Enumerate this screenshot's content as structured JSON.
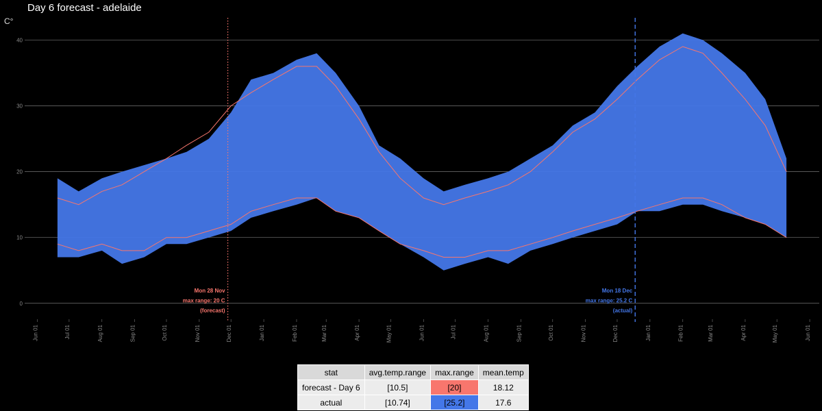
{
  "title": "Day 6 forecast - adelaide",
  "y_unit": "C°",
  "colors": {
    "forecast": "#f8766d",
    "actual": "#4477e8",
    "grid": "#777777",
    "background": "#000000"
  },
  "chart_data": {
    "type": "area",
    "title": "Day 6 forecast - adelaide",
    "xlabel": "",
    "ylabel": "C°",
    "ylim": [
      -2,
      44
    ],
    "xlim": [
      "2020-05-20",
      "2022-06-10"
    ],
    "grid": true,
    "yticks": [
      0,
      10,
      20,
      30,
      40
    ],
    "xticks": [
      {
        "date": "2020-06-01",
        "label": "Jun 01"
      },
      {
        "date": "2020-07-01",
        "label": "Jul 01"
      },
      {
        "date": "2020-08-01",
        "label": "Aug 01"
      },
      {
        "date": "2020-09-01",
        "label": "Sep 01"
      },
      {
        "date": "2020-10-01",
        "label": "Oct 01"
      },
      {
        "date": "2020-11-01",
        "label": "Nov 01"
      },
      {
        "date": "2020-12-01",
        "label": "Dec 01"
      },
      {
        "date": "2021-01-01",
        "label": "Jan 01"
      },
      {
        "date": "2021-02-01",
        "label": "Feb 01"
      },
      {
        "date": "2021-03-01",
        "label": "Mar 01"
      },
      {
        "date": "2021-04-01",
        "label": "Apr 01"
      },
      {
        "date": "2021-05-01",
        "label": "May 01"
      },
      {
        "date": "2021-06-01",
        "label": "Jun 01"
      },
      {
        "date": "2021-07-01",
        "label": "Jul 01"
      },
      {
        "date": "2021-08-01",
        "label": "Aug 01"
      },
      {
        "date": "2021-09-01",
        "label": "Sep 01"
      },
      {
        "date": "2021-10-01",
        "label": "Oct 01"
      },
      {
        "date": "2021-11-01",
        "label": "Nov 01"
      },
      {
        "date": "2021-12-01",
        "label": "Dec 01"
      },
      {
        "date": "2022-01-01",
        "label": "Jan 01"
      },
      {
        "date": "2022-02-01",
        "label": "Feb 01"
      },
      {
        "date": "2022-03-01",
        "label": "Mar 01"
      },
      {
        "date": "2022-04-01",
        "label": "Apr 01"
      },
      {
        "date": "2022-05-01",
        "label": "May 01"
      },
      {
        "date": "2022-06-01",
        "label": "Jun 01"
      }
    ],
    "series": [
      {
        "key": "actual",
        "style": "range-band",
        "color": "#4477e8",
        "x": [
          "2020-06-20",
          "2020-07-10",
          "2020-08-01",
          "2020-08-20",
          "2020-09-10",
          "2020-10-01",
          "2020-10-20",
          "2020-11-10",
          "2020-12-01",
          "2020-12-20",
          "2021-01-10",
          "2021-02-01",
          "2021-02-20",
          "2021-03-10",
          "2021-04-01",
          "2021-04-20",
          "2021-05-10",
          "2021-06-01",
          "2021-06-20",
          "2021-07-10",
          "2021-08-01",
          "2021-08-20",
          "2021-09-10",
          "2021-10-01",
          "2021-10-20",
          "2021-11-10",
          "2021-12-01",
          "2021-12-20",
          "2022-01-10",
          "2022-02-01",
          "2022-02-20",
          "2022-03-10",
          "2022-04-01",
          "2022-04-20",
          "2022-05-10"
        ],
        "low": [
          7,
          7,
          8,
          6,
          7,
          9,
          9,
          10,
          11,
          13,
          14,
          15,
          16,
          14,
          13,
          11,
          9,
          7,
          5,
          6,
          7,
          6,
          8,
          9,
          10,
          11,
          12,
          14,
          14,
          15,
          15,
          14,
          13,
          12,
          10
        ],
        "high": [
          19,
          17,
          19,
          20,
          21,
          22,
          23,
          25,
          29,
          34,
          35,
          37,
          38,
          35,
          30,
          24,
          22,
          19,
          17,
          18,
          19,
          20,
          22,
          24,
          27,
          29,
          33,
          36,
          39,
          41,
          40,
          38,
          35,
          31,
          22
        ]
      },
      {
        "key": "forecast",
        "style": "min-max-lines",
        "color": "#f8766d",
        "x": [
          "2020-06-20",
          "2020-07-10",
          "2020-08-01",
          "2020-08-20",
          "2020-09-10",
          "2020-10-01",
          "2020-10-20",
          "2020-11-10",
          "2020-12-01",
          "2020-12-20",
          "2021-01-10",
          "2021-02-01",
          "2021-02-20",
          "2021-03-10",
          "2021-04-01",
          "2021-04-20",
          "2021-05-10",
          "2021-06-01",
          "2021-06-20",
          "2021-07-10",
          "2021-08-01",
          "2021-08-20",
          "2021-09-10",
          "2021-10-01",
          "2021-10-20",
          "2021-11-10",
          "2021-12-01",
          "2021-12-20",
          "2022-01-10",
          "2022-02-01",
          "2022-02-20",
          "2022-03-10",
          "2022-04-01",
          "2022-04-20",
          "2022-05-10"
        ],
        "low": [
          9,
          8,
          9,
          8,
          8,
          10,
          10,
          11,
          12,
          14,
          15,
          16,
          16,
          14,
          13,
          11,
          9,
          8,
          7,
          7,
          8,
          8,
          9,
          10,
          11,
          12,
          13,
          14,
          15,
          16,
          16,
          15,
          13,
          12,
          10
        ],
        "high": [
          16,
          15,
          17,
          18,
          20,
          22,
          24,
          26,
          30,
          32,
          34,
          36,
          36,
          33,
          28,
          23,
          19,
          16,
          15,
          16,
          17,
          18,
          20,
          23,
          26,
          28,
          31,
          34,
          37,
          39,
          38,
          35,
          31,
          27,
          20
        ]
      }
    ],
    "annotations": [
      {
        "key": "forecast",
        "date": "2020-11-28",
        "style": "dotted",
        "color": "#f8766d",
        "lines": [
          "Mon 28 Nov",
          "max range: 20 C",
          "(forecast)"
        ]
      },
      {
        "key": "actual",
        "date": "2021-12-18",
        "style": "dashed",
        "color": "#4477e8",
        "lines": [
          "Mon 18 Dec",
          "max range: 25.2 C",
          "(actual)"
        ]
      }
    ]
  },
  "table": {
    "headers": [
      "stat",
      "avg.temp.range",
      "max.range",
      "mean.temp"
    ],
    "rows": [
      [
        "forecast - Day 6",
        "[10.5]",
        "[20]",
        "18.12"
      ],
      [
        "actual",
        "[10.74]",
        "[25.2]",
        "17.6"
      ]
    ]
  }
}
